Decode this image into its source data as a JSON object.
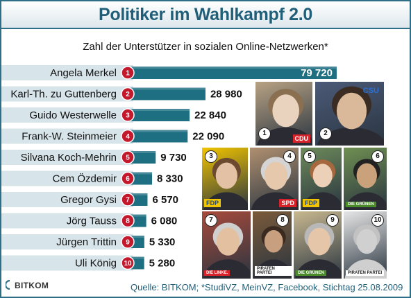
{
  "header": {
    "title": "Politiker im Wahlkampf 2.0"
  },
  "chart_data": {
    "type": "bar",
    "orientation": "horizontal",
    "title": "Politiker im Wahlkampf 2.0",
    "subtitle": "Zahl der Unterstützer in sozialen Online-Netzwerken*",
    "categories": [
      "Angela Merkel",
      "Karl-Th. zu Guttenberg",
      "Guido Westerwelle",
      "Frank-W. Steinmeier",
      "Silvana Koch-Mehrin",
      "Cem Özdemir",
      "Gregor Gysi",
      "Jörg Tauss",
      "Jürgen Trittin",
      "Uli König"
    ],
    "ranks": [
      "1",
      "2",
      "3",
      "4",
      "5",
      "6",
      "7",
      "8",
      "9",
      "10"
    ],
    "values": [
      79720,
      28980,
      22840,
      22090,
      9730,
      8330,
      6570,
      6080,
      5330,
      5280
    ],
    "value_labels": [
      "79 720",
      "28 980",
      "22 840",
      "22 090",
      "9 730",
      "8 330",
      "6 570",
      "6 080",
      "5 330",
      "5 280"
    ],
    "xlim": [
      0,
      80000
    ],
    "colors": {
      "bar": "#1f6f82",
      "badge": "#c4182c",
      "band": "#d7e4ea",
      "title": "#215f78"
    }
  },
  "photos": {
    "numbers": [
      "1",
      "2",
      "3",
      "4",
      "5",
      "6",
      "7",
      "8",
      "9",
      "10"
    ],
    "logos": [
      "CDU",
      "CSU",
      "FDP",
      "SPD",
      "FDP",
      "DIE GRÜNEN",
      "DIE LINKE.",
      "PIRATEN PARTEI",
      "DIE GRÜNEN",
      "PIRATEN PARTEI"
    ]
  },
  "footer": {
    "logo_text": "BITKOM",
    "source": "Quelle: BITKOM; *StudiVZ, MeinVZ, Facebook, Stichtag 25.08.2009"
  }
}
